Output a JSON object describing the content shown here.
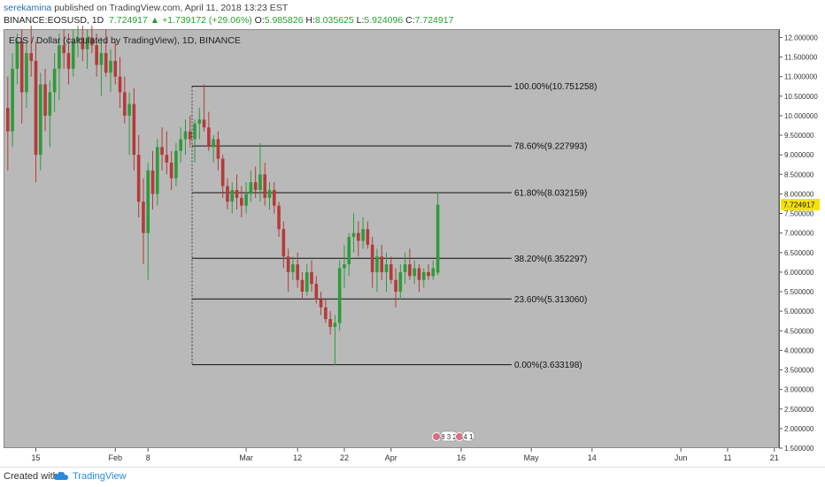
{
  "header": {
    "author": "serekamina",
    "published": " published on TradingView.com, April 11, 2018 13:23 EST",
    "symbol": "BINANCE:EOSUSD, 1D",
    "last": "7.724917",
    "change": "+1.739172 (+29.06%)",
    "o_label": "O:",
    "o": "5.985826",
    "h_label": "H:",
    "h": "8.035625",
    "l_label": "L:",
    "l": "5.924096",
    "c_label": "C:",
    "c": "7.724917"
  },
  "chart_title": "EOS / Dollar (calculated by TradingView), 1D, BINANCE",
  "footer": {
    "created": "Created with",
    "brand": "TradingView"
  },
  "events": {
    "left": "8 3 2",
    "right": "4 1"
  },
  "colors": {
    "up": "#2f9a3c",
    "down": "#b53a3a",
    "badge": "#f6e10a",
    "background": "#b9b9b9"
  },
  "chart_data": {
    "type": "candlestick",
    "ylim": [
      1.5,
      12.1
    ],
    "y_ticks": [
      "1.500000",
      "2.000000",
      "2.500000",
      "3.000000",
      "3.500000",
      "4.000000",
      "4.500000",
      "5.000000",
      "5.500000",
      "6.000000",
      "6.500000",
      "7.000000",
      "7.500000",
      "8.000000",
      "8.500000",
      "9.000000",
      "9.500000",
      "10.000000",
      "10.500000",
      "11.000000",
      "11.500000",
      "12.000000"
    ],
    "x_ticks": [
      {
        "label": "15",
        "day": 0
      },
      {
        "label": "Feb",
        "day": 17
      },
      {
        "label": "8",
        "day": 24
      },
      {
        "label": "Mar",
        "day": 45
      },
      {
        "label": "12",
        "day": 56
      },
      {
        "label": "22",
        "day": 66
      },
      {
        "label": "Apr",
        "day": 76
      },
      {
        "label": "16",
        "day": 91
      },
      {
        "label": "May",
        "day": 106
      },
      {
        "label": "14",
        "day": 119
      },
      {
        "label": "Jun",
        "day": 138
      },
      {
        "label": "11",
        "day": 148
      },
      {
        "label": "21",
        "day": 158
      }
    ],
    "last_price": {
      "label": "7.724917",
      "value": 7.724917
    },
    "fib_levels": [
      {
        "label": "100.00%(10.751258)",
        "value": 10.751258
      },
      {
        "label": "78.60%(9.227993)",
        "value": 9.227993
      },
      {
        "label": "61.80%(8.032159)",
        "value": 8.032159
      },
      {
        "label": "38.20%(6.352297)",
        "value": 6.352297
      },
      {
        "label": "23.60%(5.313060)",
        "value": 5.31306
      },
      {
        "label": "0.00%(3.633198)",
        "value": 3.633198
      }
    ],
    "candles": [
      {
        "day": -6,
        "o": 10.2,
        "h": 11.0,
        "l": 8.6,
        "c": 9.6
      },
      {
        "day": -5,
        "o": 9.6,
        "h": 11.6,
        "l": 9.2,
        "c": 11.2
      },
      {
        "day": -4,
        "o": 11.2,
        "h": 12.1,
        "l": 10.8,
        "c": 11.9
      },
      {
        "day": -3,
        "o": 11.9,
        "h": 12.2,
        "l": 9.8,
        "c": 10.6
      },
      {
        "day": -2,
        "o": 10.6,
        "h": 11.9,
        "l": 10.2,
        "c": 11.6
      },
      {
        "day": -1,
        "o": 11.6,
        "h": 12.3,
        "l": 11.0,
        "c": 11.4
      },
      {
        "day": 0,
        "o": 11.4,
        "h": 11.9,
        "l": 8.3,
        "c": 9.0
      },
      {
        "day": 1,
        "o": 9.0,
        "h": 11.1,
        "l": 8.6,
        "c": 10.8
      },
      {
        "day": 2,
        "o": 10.8,
        "h": 11.2,
        "l": 9.6,
        "c": 10.0
      },
      {
        "day": 3,
        "o": 10.0,
        "h": 10.9,
        "l": 9.2,
        "c": 10.6
      },
      {
        "day": 4,
        "o": 10.6,
        "h": 11.6,
        "l": 10.1,
        "c": 11.2
      },
      {
        "day": 5,
        "o": 11.2,
        "h": 12.1,
        "l": 10.4,
        "c": 11.8
      },
      {
        "day": 6,
        "o": 11.8,
        "h": 12.2,
        "l": 11.2,
        "c": 11.6
      },
      {
        "day": 7,
        "o": 11.6,
        "h": 12.1,
        "l": 10.8,
        "c": 11.2
      },
      {
        "day": 8,
        "o": 11.2,
        "h": 12.2,
        "l": 11.0,
        "c": 11.9
      },
      {
        "day": 9,
        "o": 11.9,
        "h": 12.3,
        "l": 11.5,
        "c": 12.0
      },
      {
        "day": 10,
        "o": 12.0,
        "h": 12.3,
        "l": 11.4,
        "c": 11.7
      },
      {
        "day": 11,
        "o": 11.7,
        "h": 12.2,
        "l": 11.2,
        "c": 12.0
      },
      {
        "day": 12,
        "o": 12.0,
        "h": 12.3,
        "l": 11.6,
        "c": 11.8
      },
      {
        "day": 13,
        "o": 11.8,
        "h": 12.1,
        "l": 11.0,
        "c": 11.3
      },
      {
        "day": 14,
        "o": 11.3,
        "h": 12.0,
        "l": 10.5,
        "c": 11.6
      },
      {
        "day": 15,
        "o": 11.6,
        "h": 12.2,
        "l": 11.0,
        "c": 11.1
      },
      {
        "day": 16,
        "o": 11.1,
        "h": 11.7,
        "l": 10.6,
        "c": 11.4
      },
      {
        "day": 17,
        "o": 11.4,
        "h": 11.9,
        "l": 10.8,
        "c": 11.0
      },
      {
        "day": 18,
        "o": 11.0,
        "h": 11.5,
        "l": 10.2,
        "c": 10.6
      },
      {
        "day": 19,
        "o": 10.6,
        "h": 11.0,
        "l": 9.8,
        "c": 10.0
      },
      {
        "day": 20,
        "o": 10.0,
        "h": 10.6,
        "l": 9.0,
        "c": 10.3
      },
      {
        "day": 21,
        "o": 10.3,
        "h": 10.7,
        "l": 8.6,
        "c": 9.0
      },
      {
        "day": 22,
        "o": 9.0,
        "h": 9.5,
        "l": 7.4,
        "c": 7.8
      },
      {
        "day": 23,
        "o": 7.8,
        "h": 8.4,
        "l": 6.2,
        "c": 7.0
      },
      {
        "day": 24,
        "o": 7.0,
        "h": 8.8,
        "l": 5.8,
        "c": 8.6
      },
      {
        "day": 25,
        "o": 8.6,
        "h": 9.1,
        "l": 7.6,
        "c": 8.0
      },
      {
        "day": 26,
        "o": 8.0,
        "h": 9.4,
        "l": 7.7,
        "c": 9.2
      },
      {
        "day": 27,
        "o": 9.2,
        "h": 9.7,
        "l": 8.6,
        "c": 9.0
      },
      {
        "day": 28,
        "o": 9.0,
        "h": 9.6,
        "l": 8.5,
        "c": 8.8
      },
      {
        "day": 29,
        "o": 8.8,
        "h": 9.1,
        "l": 8.1,
        "c": 8.4
      },
      {
        "day": 30,
        "o": 8.4,
        "h": 9.3,
        "l": 8.2,
        "c": 9.1
      },
      {
        "day": 31,
        "o": 9.1,
        "h": 9.7,
        "l": 8.8,
        "c": 9.4
      },
      {
        "day": 32,
        "o": 9.4,
        "h": 9.9,
        "l": 9.0,
        "c": 9.6
      },
      {
        "day": 33,
        "o": 9.6,
        "h": 10.0,
        "l": 9.2,
        "c": 9.4
      },
      {
        "day": 34,
        "o": 9.4,
        "h": 9.9,
        "l": 8.8,
        "c": 9.8
      },
      {
        "day": 35,
        "o": 9.8,
        "h": 10.2,
        "l": 9.4,
        "c": 9.9
      },
      {
        "day": 36,
        "o": 9.9,
        "h": 10.8,
        "l": 9.6,
        "c": 9.7
      },
      {
        "day": 37,
        "o": 9.7,
        "h": 10.1,
        "l": 9.1,
        "c": 9.2
      },
      {
        "day": 38,
        "o": 9.2,
        "h": 9.5,
        "l": 8.8,
        "c": 9.4
      },
      {
        "day": 39,
        "o": 9.4,
        "h": 9.6,
        "l": 8.6,
        "c": 8.9
      },
      {
        "day": 40,
        "o": 8.9,
        "h": 9.0,
        "l": 7.9,
        "c": 8.2
      },
      {
        "day": 41,
        "o": 8.2,
        "h": 8.4,
        "l": 7.6,
        "c": 7.8
      },
      {
        "day": 42,
        "o": 7.8,
        "h": 8.3,
        "l": 7.5,
        "c": 8.1
      },
      {
        "day": 43,
        "o": 8.1,
        "h": 8.5,
        "l": 7.6,
        "c": 7.9
      },
      {
        "day": 44,
        "o": 7.9,
        "h": 8.2,
        "l": 7.4,
        "c": 7.7
      },
      {
        "day": 45,
        "o": 7.7,
        "h": 8.3,
        "l": 7.5,
        "c": 8.0
      },
      {
        "day": 46,
        "o": 8.0,
        "h": 8.6,
        "l": 7.8,
        "c": 8.3
      },
      {
        "day": 47,
        "o": 8.3,
        "h": 8.7,
        "l": 7.9,
        "c": 8.1
      },
      {
        "day": 48,
        "o": 8.1,
        "h": 9.3,
        "l": 7.8,
        "c": 8.5
      },
      {
        "day": 49,
        "o": 8.5,
        "h": 8.8,
        "l": 7.7,
        "c": 7.9
      },
      {
        "day": 50,
        "o": 7.9,
        "h": 8.3,
        "l": 7.6,
        "c": 8.1
      },
      {
        "day": 51,
        "o": 8.1,
        "h": 8.3,
        "l": 7.5,
        "c": 7.7
      },
      {
        "day": 52,
        "o": 7.7,
        "h": 7.8,
        "l": 6.9,
        "c": 7.1
      },
      {
        "day": 53,
        "o": 7.1,
        "h": 7.3,
        "l": 6.1,
        "c": 6.4
      },
      {
        "day": 54,
        "o": 6.4,
        "h": 6.6,
        "l": 5.5,
        "c": 6.0
      },
      {
        "day": 55,
        "o": 6.0,
        "h": 6.4,
        "l": 5.8,
        "c": 6.2
      },
      {
        "day": 56,
        "o": 6.2,
        "h": 6.5,
        "l": 5.6,
        "c": 5.8
      },
      {
        "day": 57,
        "o": 5.8,
        "h": 6.0,
        "l": 5.3,
        "c": 5.5
      },
      {
        "day": 58,
        "o": 5.5,
        "h": 6.2,
        "l": 5.4,
        "c": 6.0
      },
      {
        "day": 59,
        "o": 6.0,
        "h": 6.3,
        "l": 5.5,
        "c": 5.7
      },
      {
        "day": 60,
        "o": 5.7,
        "h": 5.9,
        "l": 5.2,
        "c": 5.3
      },
      {
        "day": 61,
        "o": 5.3,
        "h": 5.5,
        "l": 4.9,
        "c": 5.1
      },
      {
        "day": 62,
        "o": 5.1,
        "h": 5.3,
        "l": 4.7,
        "c": 4.8
      },
      {
        "day": 63,
        "o": 4.8,
        "h": 5.0,
        "l": 4.4,
        "c": 4.6
      },
      {
        "day": 64,
        "o": 4.6,
        "h": 4.9,
        "l": 3.63,
        "c": 4.7
      },
      {
        "day": 65,
        "o": 4.7,
        "h": 6.3,
        "l": 4.5,
        "c": 6.1
      },
      {
        "day": 66,
        "o": 6.1,
        "h": 6.7,
        "l": 5.6,
        "c": 6.2
      },
      {
        "day": 67,
        "o": 6.2,
        "h": 7.0,
        "l": 5.9,
        "c": 6.9
      },
      {
        "day": 68,
        "o": 6.9,
        "h": 7.5,
        "l": 6.5,
        "c": 7.0
      },
      {
        "day": 69,
        "o": 7.0,
        "h": 7.3,
        "l": 6.4,
        "c": 6.8
      },
      {
        "day": 70,
        "o": 6.8,
        "h": 7.4,
        "l": 6.6,
        "c": 7.1
      },
      {
        "day": 71,
        "o": 7.1,
        "h": 7.3,
        "l": 6.6,
        "c": 6.7
      },
      {
        "day": 72,
        "o": 6.7,
        "h": 6.9,
        "l": 5.6,
        "c": 6.0
      },
      {
        "day": 73,
        "o": 6.0,
        "h": 6.6,
        "l": 5.5,
        "c": 6.4
      },
      {
        "day": 74,
        "o": 6.4,
        "h": 6.7,
        "l": 5.8,
        "c": 6.0
      },
      {
        "day": 75,
        "o": 6.0,
        "h": 6.5,
        "l": 5.5,
        "c": 6.2
      },
      {
        "day": 76,
        "o": 6.2,
        "h": 6.4,
        "l": 5.7,
        "c": 5.8
      },
      {
        "day": 77,
        "o": 5.8,
        "h": 6.1,
        "l": 5.1,
        "c": 5.5
      },
      {
        "day": 78,
        "o": 5.5,
        "h": 6.2,
        "l": 5.3,
        "c": 6.0
      },
      {
        "day": 79,
        "o": 6.0,
        "h": 6.5,
        "l": 5.7,
        "c": 6.2
      },
      {
        "day": 80,
        "o": 6.2,
        "h": 6.6,
        "l": 5.8,
        "c": 5.9
      },
      {
        "day": 81,
        "o": 5.9,
        "h": 6.3,
        "l": 5.7,
        "c": 6.1
      },
      {
        "day": 82,
        "o": 6.1,
        "h": 6.2,
        "l": 5.5,
        "c": 5.8
      },
      {
        "day": 83,
        "o": 5.8,
        "h": 6.1,
        "l": 5.6,
        "c": 6.0
      },
      {
        "day": 84,
        "o": 6.0,
        "h": 6.2,
        "l": 5.8,
        "c": 5.9
      },
      {
        "day": 85,
        "o": 5.9,
        "h": 6.3,
        "l": 5.8,
        "c": 6.1
      },
      {
        "day": 86,
        "o": 5.986,
        "h": 8.036,
        "l": 5.924,
        "c": 7.725
      }
    ]
  }
}
